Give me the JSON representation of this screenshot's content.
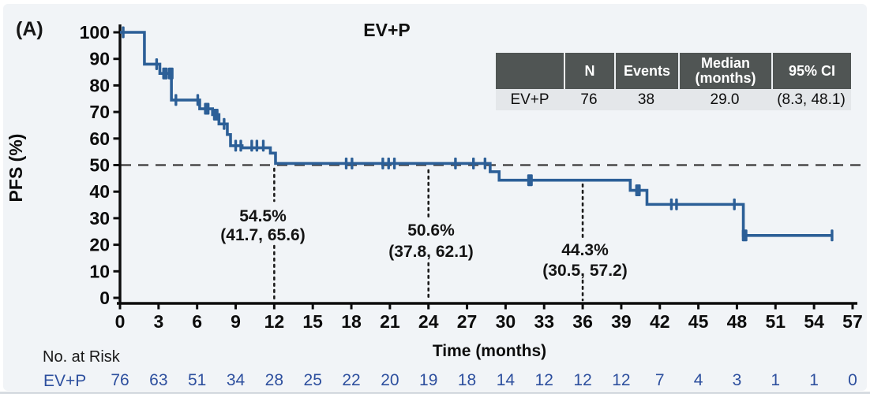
{
  "panel_label": "(A)",
  "colors": {
    "curve": "#2c5f97",
    "risk_text": "#2d4f9e",
    "axis": "#0c0c0c",
    "dashed_reference": "#4a4a4a",
    "dotted_reference": "#1c1c1c",
    "table_header_bg": "#505554",
    "table_header_text": "#ffffff",
    "table_row_bg": "#e4e7ea",
    "background": "#f1f4f7"
  },
  "summary_table": {
    "headers": [
      "",
      "N",
      "Events",
      "Median (months)",
      "95% CI"
    ],
    "rows": [
      {
        "group": "EV+P",
        "n": "76",
        "events": "38",
        "median": "29.0",
        "ci": "(8.3, 48.1)"
      }
    ]
  },
  "chart_data": {
    "type": "line",
    "subtype": "kaplan-meier-step",
    "title": "EV+P",
    "xlabel": "Time (months)",
    "ylabel": "PFS (%)",
    "xlim": [
      0,
      57
    ],
    "ylim": [
      0,
      100
    ],
    "xtick_step": 3,
    "ytick_step": 10,
    "grid": false,
    "reference_line_y": 50,
    "series": [
      {
        "name": "EV+P",
        "start": [
          0,
          100
        ],
        "drops": [
          [
            1.9,
            88
          ],
          [
            3.1,
            84.5
          ],
          [
            4.0,
            74.5
          ],
          [
            6.2,
            71.2
          ],
          [
            7.2,
            69
          ],
          [
            7.7,
            65.5
          ],
          [
            8.35,
            61.5
          ],
          [
            8.6,
            57.3
          ],
          [
            9.5,
            56.5
          ],
          [
            11.7,
            54.5
          ],
          [
            12.1,
            50.6
          ],
          [
            28.8,
            47.5
          ],
          [
            29.5,
            44.3
          ],
          [
            39.7,
            40.5
          ],
          [
            41.0,
            35.2
          ],
          [
            48.5,
            23.5
          ]
        ],
        "end_month": 55.4,
        "censor_marks": [
          [
            0.25,
            100,
            0
          ],
          [
            2.85,
            88,
            0
          ],
          [
            3.5,
            84.5,
            1
          ],
          [
            3.95,
            84.5,
            1
          ],
          [
            4.35,
            74.5,
            0
          ],
          [
            6.05,
            74.5,
            0
          ],
          [
            6.75,
            71.2,
            1
          ],
          [
            7.45,
            69,
            1
          ],
          [
            8.1,
            65.5,
            0
          ],
          [
            9.0,
            57.3,
            0
          ],
          [
            9.4,
            57.3,
            0
          ],
          [
            10.25,
            57.3,
            0
          ],
          [
            10.65,
            57.3,
            0
          ],
          [
            11.15,
            57.3,
            0
          ],
          [
            17.6,
            50.6,
            0
          ],
          [
            18.05,
            50.6,
            0
          ],
          [
            20.45,
            50.6,
            0
          ],
          [
            20.9,
            50.6,
            0
          ],
          [
            21.35,
            50.6,
            0
          ],
          [
            26.1,
            50.6,
            0
          ],
          [
            27.5,
            50.6,
            0
          ],
          [
            28.4,
            50.6,
            0
          ],
          [
            31.9,
            44.3,
            1
          ],
          [
            40.3,
            40.5,
            1
          ],
          [
            42.9,
            35.2,
            0
          ],
          [
            43.3,
            35.2,
            0
          ],
          [
            47.8,
            35.2,
            0
          ],
          [
            48.6,
            23.5,
            1
          ],
          [
            55.4,
            23.5,
            0
          ]
        ]
      }
    ],
    "landmarks": [
      {
        "month": 12,
        "estimate": "54.5%",
        "ci": "(41.7, 65.6)"
      },
      {
        "month": 24,
        "estimate": "50.6%",
        "ci": "(37.8, 62.1)"
      },
      {
        "month": 36,
        "estimate": "44.3%",
        "ci": "(30.5, 57.2)"
      }
    ]
  },
  "risk_table": {
    "heading": "No. at Risk",
    "group": "EV+P",
    "time_points": [
      0,
      3,
      6,
      9,
      12,
      15,
      18,
      21,
      24,
      27,
      30,
      33,
      36,
      39,
      42,
      45,
      48,
      51,
      54,
      57
    ],
    "counts": [
      76,
      63,
      51,
      34,
      28,
      25,
      22,
      20,
      19,
      18,
      14,
      12,
      12,
      12,
      7,
      4,
      3,
      1,
      1,
      0
    ]
  }
}
